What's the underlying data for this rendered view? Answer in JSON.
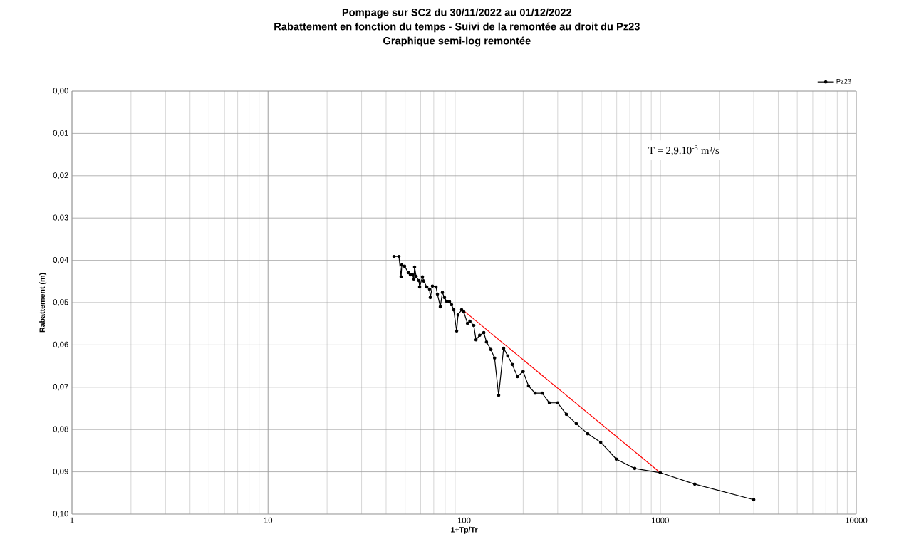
{
  "chart_data": {
    "type": "line",
    "title": "Pompage sur SC2 du 30/11/2022 au 01/12/2022",
    "subtitle": "Rabattement en fonction du temps - Suivi de la remontée au droit du Pz23",
    "annotations": [
      "Graphique semi-log remontée",
      "T = 2,9.10$^{-3}$ m²/s"
    ],
    "xlabel": "1+Tp/Tr",
    "ylabel": "Rabattement (m)",
    "log": "x",
    "grid": true,
    "legend": "top right",
    "marker": "circle",
    "xlim": [
      1,
      10000
    ],
    "xticks": [
      1,
      10,
      100,
      1000,
      10000
    ],
    "ylim": [
      0.1,
      0
    ],
    "yticks": [
      {
        "value": 0,
        "label": "0,00"
      },
      {
        "value": 0.01,
        "label": "0,01"
      },
      {
        "value": 0.02,
        "label": "0,02"
      },
      {
        "value": 0.03,
        "label": "0,03"
      },
      {
        "value": 0.04,
        "label": "0,04"
      },
      {
        "value": 0.05,
        "label": "0,05"
      },
      {
        "value": 0.06,
        "label": "0,06"
      },
      {
        "value": 0.07,
        "label": "0,07"
      },
      {
        "value": 0.08,
        "label": "0,08"
      },
      {
        "value": 0.09,
        "label": "0,09"
      },
      {
        "value": 0.1,
        "label": "0,10"
      }
    ],
    "series": [
      {
        "name": "Pz23",
        "color": "#000000",
        "x": [
          43.9,
          46.5,
          47.7,
          48.1,
          49.7,
          51.9,
          53.2,
          54.5,
          55.4,
          55.9,
          56.9,
          58.8,
          59.3,
          61.3,
          62.3,
          64.5,
          66.6,
          67.2,
          68.9,
          71.9,
          73.1,
          75.6,
          77.5,
          79.4,
          81.5,
          84.2,
          86.3,
          88.5,
          91.6,
          93.1,
          97.1,
          99.6,
          104,
          107,
          112,
          115,
          120,
          126,
          130,
          137,
          143,
          150,
          159,
          167,
          176,
          187,
          200,
          213,
          230,
          250,
          272,
          300,
          332,
          373,
          427,
          497,
          597,
          741,
          1000,
          1500,
          3000
        ],
        "values": [
          0.0391,
          0.0391,
          0.0439,
          0.0411,
          0.0414,
          0.0429,
          0.0434,
          0.0434,
          0.0444,
          0.0416,
          0.0438,
          0.0448,
          0.0463,
          0.0439,
          0.0449,
          0.0463,
          0.0468,
          0.0488,
          0.0461,
          0.0463,
          0.048,
          0.051,
          0.0476,
          0.0488,
          0.0497,
          0.0498,
          0.0505,
          0.0517,
          0.0567,
          0.0529,
          0.0517,
          0.0522,
          0.0549,
          0.0544,
          0.0554,
          0.0588,
          0.0577,
          0.0571,
          0.0593,
          0.0611,
          0.0631,
          0.0719,
          0.0608,
          0.0626,
          0.0646,
          0.0675,
          0.0663,
          0.0697,
          0.0714,
          0.0714,
          0.0737,
          0.0737,
          0.0764,
          0.0786,
          0.081,
          0.083,
          0.087,
          0.0892,
          0.0902,
          0.0929,
          0.0966
        ]
      },
      {
        "type": "line",
        "color": "#ff0000",
        "marker": "none",
        "x": [
          100,
          1000
        ],
        "values": [
          0.052,
          0.0902
        ]
      }
    ]
  }
}
